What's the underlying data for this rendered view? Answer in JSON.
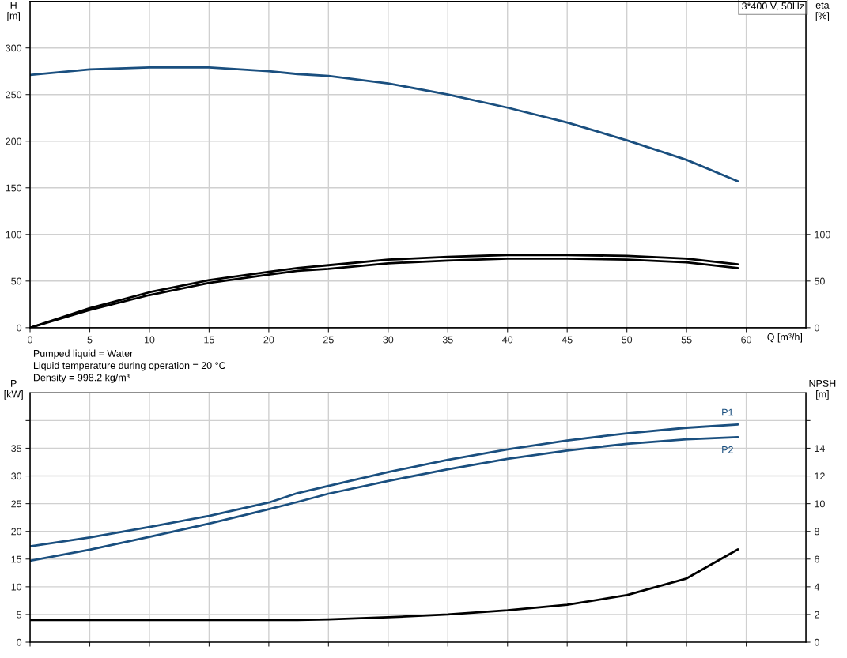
{
  "chart_data": [
    {
      "type": "line",
      "xlabel": "Q [m³/h]",
      "ylabel": "H\n[m]",
      "y2label": "eta\n[%]",
      "xlim": [
        0,
        65
      ],
      "xticks": [
        0,
        5,
        10,
        15,
        20,
        25,
        30,
        35,
        40,
        45,
        50,
        55,
        60
      ],
      "ylim": [
        0,
        350
      ],
      "yticks": [
        0,
        50,
        100,
        150,
        200,
        250,
        300
      ],
      "y2lim": [
        0,
        350
      ],
      "y2ticks": [
        0,
        50,
        100
      ],
      "grid": true,
      "legend": false,
      "marker": "none",
      "line_style": "solid",
      "annotations": [
        "3*400 V, 50Hz",
        "Pumped liquid = Water",
        "Liquid temperature during operation = 20 °C",
        "Density = 998.2 kg/m³"
      ],
      "series": [
        {
          "color": "#1a4f7f",
          "x": [
            0,
            5,
            10,
            15,
            20,
            22.4,
            25,
            30,
            35,
            40,
            45,
            50,
            55,
            59.3
          ],
          "values": [
            271,
            277,
            279,
            279,
            275,
            272,
            270,
            262,
            250,
            236,
            220,
            201,
            180,
            157
          ]
        },
        {
          "color": "#000000",
          "axis": "y2",
          "x": [
            0,
            5,
            10,
            15,
            20,
            22.4,
            25,
            30,
            35,
            40,
            45,
            50,
            55,
            59.3
          ],
          "values": [
            0,
            21,
            38,
            51,
            60,
            64,
            67,
            73,
            76,
            78,
            78,
            77,
            74,
            68
          ]
        },
        {
          "color": "#000000",
          "axis": "y2",
          "x": [
            0,
            5,
            10,
            15,
            20,
            22.4,
            25,
            30,
            35,
            40,
            45,
            50,
            55,
            59.3
          ],
          "values": [
            0,
            19,
            35,
            48,
            57,
            61,
            63,
            69,
            72,
            74,
            74,
            73,
            70,
            64
          ]
        }
      ]
    },
    {
      "type": "line",
      "ylabel": "P\n[kW]",
      "y2label": "NPSH\n[m]",
      "tick_labels": "y",
      "xlim": [
        0,
        65
      ],
      "xticks": [
        0,
        5,
        10,
        15,
        20,
        25,
        30,
        35,
        40,
        45,
        50,
        55,
        60
      ],
      "ylim": [
        0,
        45
      ],
      "yticks": [
        0,
        5,
        10,
        15,
        20,
        25,
        30,
        35,
        {
          "value": 40,
          "label": null
        }
      ],
      "y2lim": [
        0,
        18
      ],
      "y2ticks": [
        0,
        2,
        4,
        6,
        8,
        10,
        12,
        14,
        {
          "value": 16,
          "label": null
        }
      ],
      "grid": true,
      "legend": false,
      "marker": "none",
      "line_style": "solid",
      "series": [
        {
          "name": "P1",
          "color": "#1a4f7f",
          "x": [
            0,
            5,
            10,
            15,
            20,
            22.4,
            25,
            30,
            35,
            40,
            45,
            50,
            55,
            59.3
          ],
          "values": [
            17.3,
            18.9,
            20.8,
            22.8,
            25.2,
            26.9,
            28.2,
            30.7,
            32.9,
            34.8,
            36.4,
            37.7,
            38.7,
            39.3
          ]
        },
        {
          "name": "P2",
          "color": "#1a4f7f",
          "x": [
            0,
            5,
            10,
            15,
            20,
            22.4,
            25,
            30,
            35,
            40,
            45,
            50,
            55,
            59.3
          ],
          "values": [
            14.7,
            16.7,
            19.0,
            21.4,
            24.0,
            25.3,
            26.8,
            29.1,
            31.2,
            33.1,
            34.6,
            35.8,
            36.6,
            37.0
          ]
        },
        {
          "color": "#000000",
          "axis": "y2",
          "x": [
            0,
            10,
            22.4,
            25,
            30,
            35,
            40,
            45,
            50,
            55,
            59.3
          ],
          "values": [
            1.6,
            1.6,
            1.6,
            1.65,
            1.8,
            2.0,
            2.3,
            2.7,
            3.4,
            4.6,
            6.7
          ]
        }
      ]
    }
  ]
}
